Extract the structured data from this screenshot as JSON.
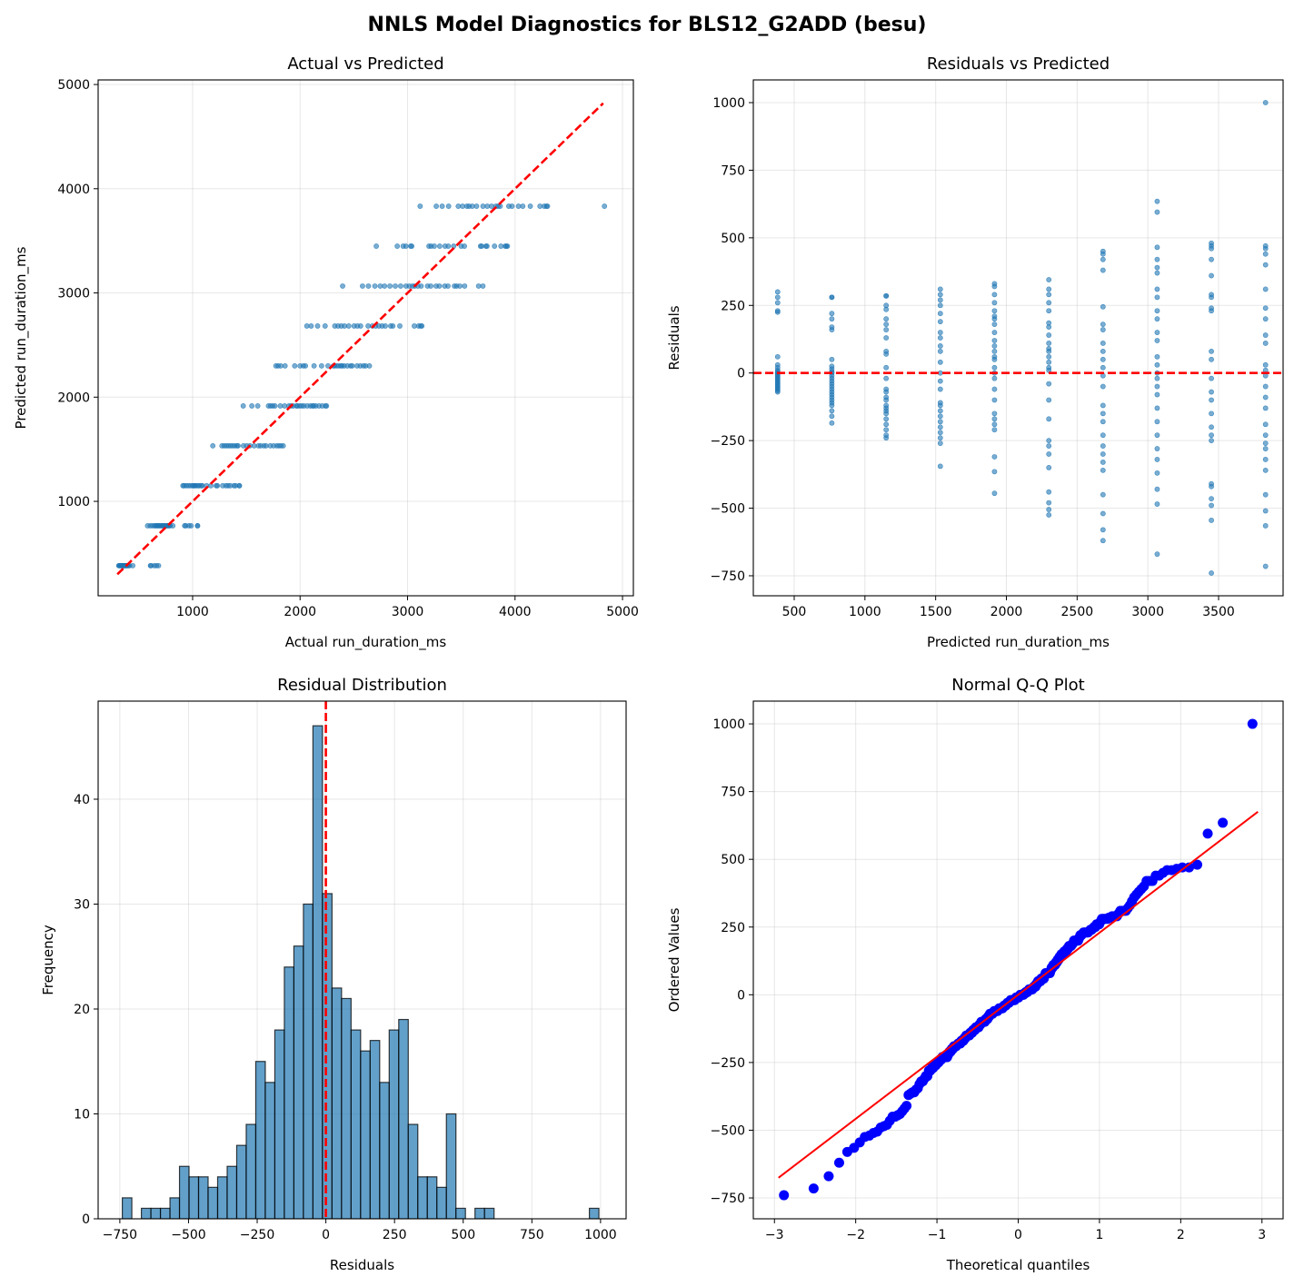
{
  "suptitle": "NNLS Model Diagnostics for BLS12_G2ADD (besu)",
  "colors": {
    "scatter": "#1f77b4",
    "ref": "#ff0000",
    "qq": "#0000ff",
    "bar": "#1f77b4"
  },
  "residual_groups": [
    {
      "predicted": 383,
      "residuals": [
        300,
        280,
        260,
        230,
        225,
        60,
        30,
        20,
        10,
        5,
        0,
        -5,
        -10,
        -15,
        -20,
        -25,
        -30,
        -35,
        -40,
        -45,
        -50,
        -55,
        -60,
        -65,
        -70
      ]
    },
    {
      "predicted": 766,
      "residuals": [
        280,
        280,
        220,
        200,
        170,
        160,
        50,
        25,
        15,
        5,
        0,
        -10,
        -20,
        -30,
        -40,
        -50,
        -60,
        -70,
        -80,
        -90,
        -100,
        -110,
        -120,
        -140,
        -160,
        -185
      ]
    },
    {
      "predicted": 1150,
      "residuals": [
        285,
        285,
        250,
        235,
        200,
        180,
        160,
        130,
        80,
        70,
        20,
        -20,
        -60,
        -70,
        -90,
        -100,
        -120,
        -130,
        -140,
        -150,
        -170,
        -190,
        -210,
        -230,
        -240
      ]
    },
    {
      "predicted": 1533,
      "residuals": [
        310,
        290,
        270,
        250,
        220,
        190,
        150,
        130,
        100,
        80,
        40,
        0,
        -30,
        -60,
        -110,
        -120,
        -140,
        -160,
        -180,
        -200,
        -220,
        -240,
        -260,
        -345
      ]
    },
    {
      "predicted": 1916,
      "residuals": [
        330,
        320,
        290,
        260,
        230,
        210,
        200,
        180,
        150,
        120,
        100,
        80,
        60,
        50,
        20,
        0,
        -20,
        -60,
        -100,
        -150,
        -170,
        -190,
        -210,
        -310,
        -365,
        -445
      ]
    },
    {
      "predicted": 2300,
      "residuals": [
        345,
        310,
        290,
        260,
        230,
        185,
        170,
        140,
        110,
        90,
        80,
        60,
        40,
        20,
        10,
        -40,
        -100,
        -170,
        -250,
        -270,
        -300,
        -350,
        -440,
        -480,
        -505,
        -525
      ]
    },
    {
      "predicted": 2683,
      "residuals": [
        450,
        440,
        420,
        380,
        245,
        180,
        160,
        110,
        80,
        50,
        20,
        -10,
        -50,
        -120,
        -150,
        -180,
        -230,
        -270,
        -300,
        -330,
        -360,
        -450,
        -520,
        -580,
        -620
      ]
    },
    {
      "predicted": 3066,
      "residuals": [
        635,
        595,
        465,
        420,
        390,
        370,
        310,
        280,
        230,
        200,
        150,
        120,
        60,
        30,
        0,
        -20,
        -50,
        -80,
        -130,
        -180,
        -230,
        -280,
        -320,
        -370,
        -430,
        -485,
        -670
      ]
    },
    {
      "predicted": 3449,
      "residuals": [
        480,
        470,
        460,
        420,
        360,
        290,
        280,
        240,
        230,
        80,
        50,
        -20,
        -70,
        -100,
        -150,
        -200,
        -230,
        -250,
        -410,
        -420,
        -465,
        -490,
        -545,
        -740
      ]
    },
    {
      "predicted": 3832,
      "residuals": [
        1000,
        470,
        460,
        440,
        400,
        310,
        240,
        200,
        140,
        110,
        30,
        10,
        -10,
        -50,
        -90,
        -130,
        -190,
        -230,
        -260,
        -280,
        -320,
        -360,
        -450,
        -510,
        -565,
        -715
      ]
    }
  ],
  "chart_data": [
    {
      "type": "scatter",
      "title": "Actual vs Predicted",
      "xlabel": "Actual run_duration_ms",
      "ylabel": "Predicted run_duration_ms",
      "xlim": [
        121,
        5101
      ],
      "ylim": [
        94,
        5044
      ],
      "xticks": [
        1000,
        2000,
        3000,
        4000,
        5000
      ],
      "xtick_labels": [
        "1000",
        "2000",
        "3000",
        "4000",
        "5000"
      ],
      "yticks": [
        1000,
        2000,
        3000,
        4000,
        5000
      ],
      "ytick_labels": [
        "1000",
        "2000",
        "3000",
        "4000",
        "5000"
      ],
      "reference_line": {
        "from": [
          300,
          300
        ],
        "to": [
          4820,
          4820
        ],
        "style": "dashed"
      },
      "points_from": "residual_groups (x = predicted + residual, y = predicted)",
      "grid": true
    },
    {
      "type": "scatter",
      "title": "Residuals vs Predicted",
      "xlabel": "Predicted run_duration_ms",
      "ylabel": "Residuals",
      "xlim": [
        211,
        3956
      ],
      "ylim": [
        -824,
        1084
      ],
      "xticks": [
        500,
        1000,
        1500,
        2000,
        2500,
        3000,
        3500
      ],
      "xtick_labels": [
        "500",
        "1000",
        "1500",
        "2000",
        "2500",
        "3000",
        "3500"
      ],
      "yticks": [
        -750,
        -500,
        -250,
        0,
        250,
        500,
        750,
        1000
      ],
      "ytick_labels": [
        "−750",
        "−500",
        "−250",
        "0",
        "250",
        "500",
        "750",
        "1000"
      ],
      "reference_line": {
        "y": 0,
        "style": "dashed"
      },
      "points_from": "residual_groups (x = predicted, y = residual)",
      "grid": true
    },
    {
      "type": "bar",
      "title": "Residual Distribution",
      "xlabel": "Residuals",
      "ylabel": "Frequency",
      "xlim": [
        -829,
        1093
      ],
      "ylim": [
        0,
        49.35
      ],
      "bin_start": -741,
      "bin_width": 34.7,
      "counts": [
        2,
        0,
        1,
        1,
        1,
        2,
        5,
        4,
        4,
        3,
        4,
        5,
        7,
        9,
        15,
        13,
        18,
        24,
        26,
        30,
        47,
        31,
        22,
        21,
        18,
        16,
        17,
        13,
        18,
        19,
        9,
        4,
        4,
        3,
        10,
        1,
        0,
        1,
        1,
        0,
        0,
        0,
        0,
        0,
        0,
        0,
        0,
        0,
        0,
        1
      ],
      "xticks": [
        -750,
        -500,
        -250,
        0,
        250,
        500,
        750,
        1000
      ],
      "xtick_labels": [
        "−750",
        "−500",
        "−250",
        "0",
        "250",
        "500",
        "750",
        "1000"
      ],
      "yticks": [
        0,
        10,
        20,
        30,
        40
      ],
      "ytick_labels": [
        "0",
        "10",
        "20",
        "30",
        "40"
      ],
      "reference_line": {
        "x": 0,
        "style": "dashed"
      },
      "grid": true
    },
    {
      "type": "scatter",
      "title": "Normal Q-Q Plot",
      "xlabel": "Theoretical quantiles",
      "ylabel": "Ordered Values",
      "xlim": [
        -3.26,
        3.26
      ],
      "ylim": [
        -827,
        1084
      ],
      "xticks": [
        -3,
        -2,
        -1,
        0,
        1,
        2,
        3
      ],
      "xtick_labels": [
        "−3",
        "−2",
        "−1",
        "0",
        "1",
        "2",
        "3"
      ],
      "yticks": [
        -750,
        -500,
        -250,
        0,
        250,
        500,
        750,
        1000
      ],
      "ytick_labels": [
        "−750",
        "−500",
        "−250",
        "0",
        "250",
        "500",
        "750",
        "1000"
      ],
      "fit_line": {
        "slope": 229,
        "intercept": 0,
        "x_range": [
          -2.95,
          2.95
        ]
      },
      "points_from": "sorted residuals vs normal quantiles",
      "grid": true
    }
  ]
}
